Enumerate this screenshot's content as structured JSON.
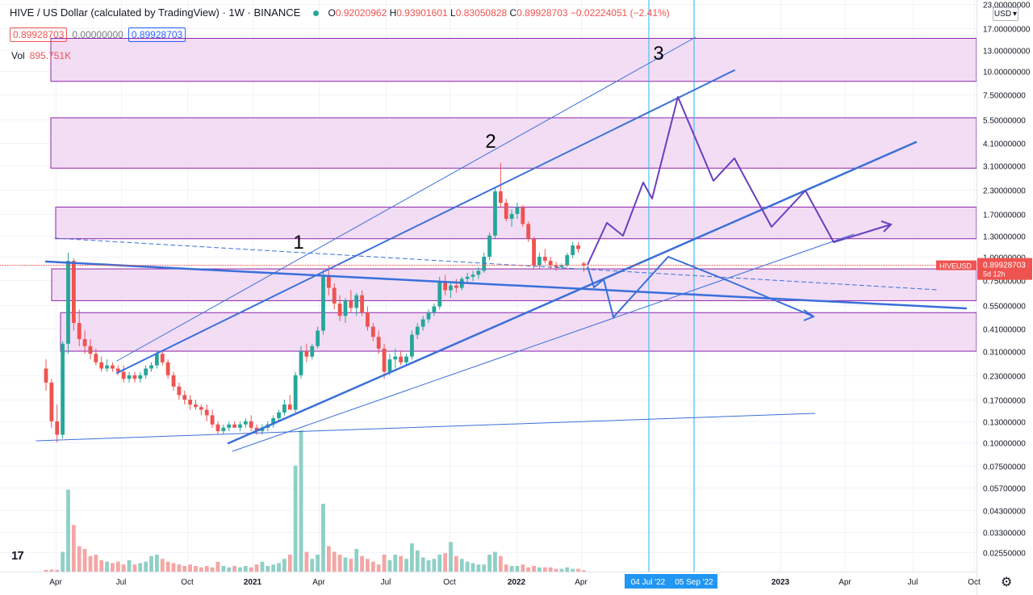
{
  "header": {
    "title": "HIVE / US Dollar (calculated by TradingView) · 1W · BINANCE",
    "open_label": "O",
    "open": "0.92020962",
    "high_label": "H",
    "high": "0.93901601",
    "low_label": "L",
    "low": "0.83050828",
    "close_label": "C",
    "close": "0.89928703",
    "change": "−0.02224051 (−2.41%)"
  },
  "quote": {
    "bid": "0.89928703",
    "spread": "0.00000000",
    "ask": "0.89928703"
  },
  "volume": {
    "label": "Vol",
    "value": "895.751K"
  },
  "currency": {
    "label": "USD",
    "icon": "chevron-down-icon"
  },
  "price_tag": {
    "symbol": "HIVEUSD",
    "price": "0.89928703",
    "countdown": "5d 12h"
  },
  "icons": {
    "logo": "tradingview-logo-icon",
    "settings": "gear-icon"
  },
  "logo_text": "17",
  "colors": {
    "up": "#26a69a",
    "down": "#ef5350",
    "up_vol": "#8fd0c6",
    "down_vol": "#f4a6a5",
    "zone_fill": "#efd4f2",
    "zone_stroke": "#8e24aa",
    "channel": "#3a6fd9",
    "projection": "#6a3fbf",
    "vline": "#29b6f6"
  },
  "chart_data": {
    "type": "candlestick",
    "symbol": "HIVEUSD",
    "interval": "1W",
    "exchange": "BINANCE",
    "y_scale": "log",
    "grid": true,
    "x_ticks": [
      "Apr",
      "Jul",
      "Oct",
      "2021",
      "Apr",
      "Jul",
      "Oct",
      "2022",
      "Apr",
      "Jul",
      "Sep",
      "2023",
      "Apr",
      "Jul",
      "Oct"
    ],
    "y_ticks": [
      "23.00000000",
      "17.00000000",
      "13.00000000",
      "10.00000000",
      "7.50000000",
      "5.50000000",
      "4.10000000",
      "3.10000000",
      "2.30000000",
      "1.70000000",
      "1.30000000",
      "1.00000000",
      "0.75000000",
      "0.55000000",
      "0.41000000",
      "0.31000000",
      "0.23000000",
      "0.17000000",
      "0.13000000",
      "0.10000000",
      "0.07500000",
      "0.05700000",
      "0.04300000",
      "0.03300000",
      "0.02550000"
    ],
    "wave_labels": [
      "1",
      "2",
      "3"
    ],
    "vline_labels": [
      "04 Jul '22",
      "05 Sep '22"
    ],
    "last_price": 0.89928703,
    "candles": [
      [
        0.25,
        0.28,
        0.19,
        0.21
      ],
      [
        0.21,
        0.22,
        0.12,
        0.13
      ],
      [
        0.13,
        0.16,
        0.1,
        0.11
      ],
      [
        0.11,
        0.35,
        0.105,
        0.34
      ],
      [
        0.34,
        1.05,
        0.3,
        0.95
      ],
      [
        0.95,
        0.98,
        0.4,
        0.44
      ],
      [
        0.44,
        0.52,
        0.33,
        0.36
      ],
      [
        0.36,
        0.4,
        0.3,
        0.33
      ],
      [
        0.33,
        0.36,
        0.28,
        0.3
      ],
      [
        0.3,
        0.32,
        0.26,
        0.27
      ],
      [
        0.27,
        0.29,
        0.24,
        0.25
      ],
      [
        0.25,
        0.28,
        0.24,
        0.26
      ],
      [
        0.26,
        0.27,
        0.24,
        0.25
      ],
      [
        0.25,
        0.26,
        0.23,
        0.24
      ],
      [
        0.24,
        0.26,
        0.21,
        0.22
      ],
      [
        0.22,
        0.24,
        0.21,
        0.23
      ],
      [
        0.23,
        0.24,
        0.21,
        0.22
      ],
      [
        0.22,
        0.24,
        0.21,
        0.23
      ],
      [
        0.23,
        0.26,
        0.22,
        0.25
      ],
      [
        0.25,
        0.27,
        0.24,
        0.26
      ],
      [
        0.26,
        0.31,
        0.25,
        0.3
      ],
      [
        0.3,
        0.31,
        0.26,
        0.27
      ],
      [
        0.27,
        0.28,
        0.22,
        0.23
      ],
      [
        0.23,
        0.24,
        0.19,
        0.2
      ],
      [
        0.2,
        0.21,
        0.17,
        0.18
      ],
      [
        0.18,
        0.19,
        0.16,
        0.17
      ],
      [
        0.17,
        0.18,
        0.15,
        0.16
      ],
      [
        0.16,
        0.17,
        0.15,
        0.155
      ],
      [
        0.155,
        0.16,
        0.14,
        0.15
      ],
      [
        0.15,
        0.16,
        0.13,
        0.14
      ],
      [
        0.14,
        0.15,
        0.12,
        0.125
      ],
      [
        0.125,
        0.13,
        0.11,
        0.115
      ],
      [
        0.115,
        0.125,
        0.11,
        0.12
      ],
      [
        0.12,
        0.13,
        0.115,
        0.125
      ],
      [
        0.125,
        0.13,
        0.12,
        0.12
      ],
      [
        0.12,
        0.13,
        0.115,
        0.125
      ],
      [
        0.125,
        0.135,
        0.12,
        0.13
      ],
      [
        0.13,
        0.14,
        0.115,
        0.12
      ],
      [
        0.12,
        0.125,
        0.11,
        0.115
      ],
      [
        0.115,
        0.125,
        0.11,
        0.12
      ],
      [
        0.12,
        0.13,
        0.115,
        0.125
      ],
      [
        0.125,
        0.14,
        0.12,
        0.135
      ],
      [
        0.135,
        0.15,
        0.13,
        0.145
      ],
      [
        0.145,
        0.17,
        0.14,
        0.16
      ],
      [
        0.16,
        0.18,
        0.15,
        0.15
      ],
      [
        0.15,
        0.24,
        0.145,
        0.23
      ],
      [
        0.23,
        0.33,
        0.22,
        0.31
      ],
      [
        0.31,
        0.34,
        0.27,
        0.29
      ],
      [
        0.29,
        0.34,
        0.28,
        0.33
      ],
      [
        0.33,
        0.42,
        0.32,
        0.4
      ],
      [
        0.4,
        0.85,
        0.38,
        0.78
      ],
      [
        0.78,
        0.9,
        0.62,
        0.68
      ],
      [
        0.68,
        0.72,
        0.52,
        0.56
      ],
      [
        0.56,
        0.62,
        0.45,
        0.48
      ],
      [
        0.48,
        0.6,
        0.44,
        0.58
      ],
      [
        0.58,
        0.66,
        0.5,
        0.53
      ],
      [
        0.53,
        0.64,
        0.48,
        0.62
      ],
      [
        0.62,
        0.66,
        0.48,
        0.5
      ],
      [
        0.5,
        0.54,
        0.4,
        0.42
      ],
      [
        0.42,
        0.44,
        0.35,
        0.37
      ],
      [
        0.37,
        0.4,
        0.3,
        0.32
      ],
      [
        0.32,
        0.34,
        0.22,
        0.24
      ],
      [
        0.24,
        0.3,
        0.23,
        0.28
      ],
      [
        0.28,
        0.32,
        0.25,
        0.29
      ],
      [
        0.29,
        0.31,
        0.26,
        0.27
      ],
      [
        0.27,
        0.3,
        0.26,
        0.29
      ],
      [
        0.29,
        0.4,
        0.28,
        0.38
      ],
      [
        0.38,
        0.44,
        0.36,
        0.42
      ],
      [
        0.42,
        0.48,
        0.4,
        0.46
      ],
      [
        0.46,
        0.52,
        0.44,
        0.5
      ],
      [
        0.5,
        0.56,
        0.48,
        0.54
      ],
      [
        0.54,
        0.78,
        0.52,
        0.74
      ],
      [
        0.74,
        0.8,
        0.62,
        0.66
      ],
      [
        0.66,
        0.72,
        0.6,
        0.7
      ],
      [
        0.7,
        0.76,
        0.64,
        0.68
      ],
      [
        0.68,
        0.78,
        0.66,
        0.76
      ],
      [
        0.76,
        0.82,
        0.72,
        0.78
      ],
      [
        0.78,
        0.84,
        0.74,
        0.8
      ],
      [
        0.8,
        0.88,
        0.76,
        0.84
      ],
      [
        0.84,
        1.05,
        0.82,
        1.0
      ],
      [
        1.0,
        1.35,
        0.96,
        1.3
      ],
      [
        1.3,
        2.35,
        1.25,
        2.25
      ],
      [
        2.25,
        3.2,
        1.85,
        1.95
      ],
      [
        1.95,
        2.05,
        1.55,
        1.6
      ],
      [
        1.6,
        1.8,
        1.45,
        1.7
      ],
      [
        1.7,
        1.95,
        1.6,
        1.85
      ],
      [
        1.85,
        1.9,
        1.45,
        1.5
      ],
      [
        1.5,
        1.55,
        1.2,
        1.25
      ],
      [
        1.25,
        1.28,
        0.85,
        0.9
      ],
      [
        0.9,
        1.05,
        0.86,
        1.0
      ],
      [
        1.0,
        1.1,
        0.92,
        0.95
      ],
      [
        0.95,
        1.0,
        0.86,
        0.9
      ],
      [
        0.9,
        0.94,
        0.84,
        0.88
      ],
      [
        0.88,
        0.92,
        0.85,
        0.9
      ],
      [
        0.9,
        1.05,
        0.88,
        1.02
      ],
      [
        1.02,
        1.2,
        0.98,
        1.15
      ],
      [
        1.15,
        1.2,
        1.05,
        1.1
      ],
      [
        0.92,
        0.94,
        0.83,
        0.899
      ]
    ],
    "volumes": [
      0.012,
      0.014,
      0.012,
      0.14,
      0.58,
      0.33,
      0.18,
      0.16,
      0.11,
      0.12,
      0.08,
      0.07,
      0.06,
      0.07,
      0.05,
      0.08,
      0.05,
      0.06,
      0.07,
      0.11,
      0.12,
      0.09,
      0.07,
      0.06,
      0.05,
      0.04,
      0.05,
      0.04,
      0.03,
      0.04,
      0.03,
      0.07,
      0.04,
      0.03,
      0.04,
      0.03,
      0.04,
      0.03,
      0.05,
      0.07,
      0.04,
      0.05,
      0.06,
      0.09,
      0.12,
      0.75,
      1.0,
      0.14,
      0.09,
      0.12,
      0.48,
      0.18,
      0.14,
      0.12,
      0.1,
      0.09,
      0.16,
      0.11,
      0.09,
      0.07,
      0.05,
      0.12,
      0.08,
      0.12,
      0.11,
      0.09,
      0.2,
      0.15,
      0.1,
      0.08,
      0.09,
      0.12,
      0.13,
      0.21,
      0.11,
      0.09,
      0.07,
      0.06,
      0.05,
      0.05,
      0.12,
      0.14,
      0.11,
      0.05,
      0.04,
      0.04,
      0.05,
      0.03,
      0.04,
      0.03,
      0.03,
      0.03,
      0.02,
      0.02,
      0.03,
      0.02,
      0.02,
      0.01
    ],
    "supply_demand_zones": [
      [
        8.8,
        15.0
      ],
      [
        3.0,
        5.6
      ],
      [
        1.25,
        1.85
      ],
      [
        0.58,
        0.86
      ],
      [
        0.31,
        0.5
      ]
    ]
  }
}
